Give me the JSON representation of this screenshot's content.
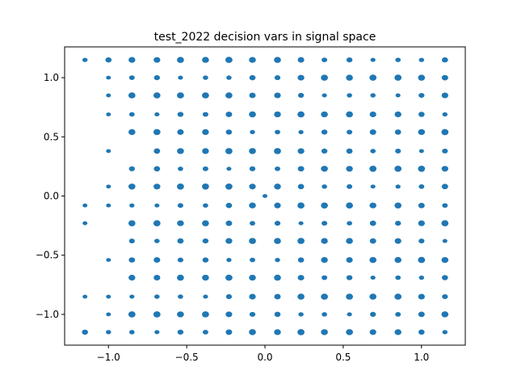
{
  "chart_data": {
    "type": "scatter",
    "title": "test_2022 decision vars in signal space",
    "xlabel": "",
    "ylabel": "",
    "xlim": [
      -1.28,
      1.28
    ],
    "ylim": [
      -1.26,
      1.26
    ],
    "xticks": [
      -1.0,
      -0.5,
      0.0,
      0.5,
      1.0
    ],
    "xtick_labels": [
      "−1.0",
      "−0.5",
      "0.0",
      "0.5",
      "1.0"
    ],
    "yticks": [
      -1.0,
      -0.5,
      0.0,
      0.5,
      1.0
    ],
    "ytick_labels": [
      "−1.0",
      "−0.5",
      "0.0",
      "0.5",
      "1.0"
    ],
    "grid": false,
    "marker_color": "#1f77b4",
    "lattice_x": [
      -1.15,
      -1.0,
      -0.85,
      -0.69,
      -0.54,
      -0.38,
      -0.23,
      -0.08,
      0.08,
      0.23,
      0.38,
      0.54,
      0.69,
      0.85,
      1.0,
      1.15
    ],
    "lattice_y": [
      1.15,
      1.0,
      0.85,
      0.69,
      0.54,
      0.38,
      0.23,
      0.08,
      -0.08,
      -0.23,
      -0.38,
      -0.54,
      -0.69,
      -0.85,
      -1.0,
      -1.15
    ],
    "missing_points": [
      [
        -1.15,
        1.0
      ],
      [
        -1.15,
        0.85
      ],
      [
        -1.15,
        0.69
      ],
      [
        -1.15,
        0.54
      ],
      [
        -1.15,
        0.38
      ],
      [
        -1.15,
        0.23
      ],
      [
        -1.15,
        0.08
      ],
      [
        -1.15,
        -0.38
      ],
      [
        -1.15,
        -0.54
      ],
      [
        -1.15,
        -0.69
      ],
      [
        -1.15,
        -1.0
      ],
      [
        -1.0,
        0.54
      ],
      [
        -1.0,
        0.23
      ],
      [
        -1.0,
        -0.23
      ],
      [
        -1.0,
        -0.38
      ],
      [
        -1.0,
        -0.69
      ],
      [
        -0.85,
        0.38
      ]
    ],
    "extra_points": [
      [
        0.0,
        0.0
      ]
    ]
  }
}
